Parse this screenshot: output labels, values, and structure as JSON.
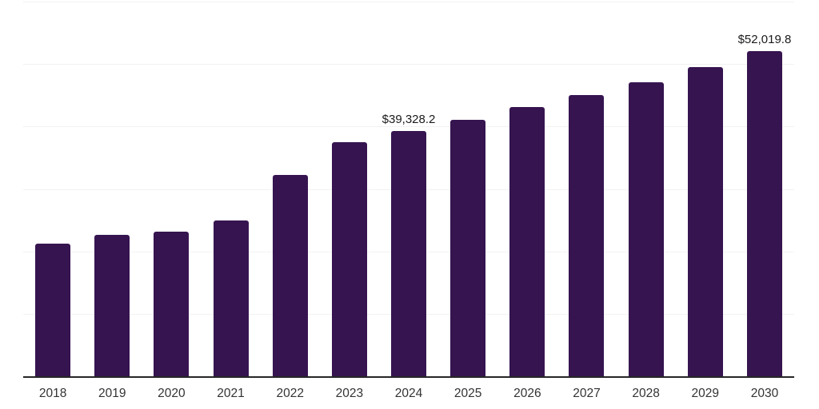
{
  "chart_data": {
    "type": "bar",
    "title": "",
    "xlabel": "",
    "ylabel": "",
    "categories": [
      "2018",
      "2019",
      "2020",
      "2021",
      "2022",
      "2023",
      "2024",
      "2025",
      "2026",
      "2027",
      "2028",
      "2029",
      "2030"
    ],
    "values": [
      21200,
      22600,
      23100,
      25000,
      32200,
      37500,
      39328.2,
      41100,
      43100,
      45000,
      47100,
      49500,
      52019.8
    ],
    "data_labels": [
      null,
      null,
      null,
      null,
      null,
      null,
      "$39,328.2",
      null,
      null,
      null,
      null,
      null,
      "$52,019.8"
    ],
    "ylim": [
      0,
      60000
    ],
    "grid_step": 10000,
    "grid": "horizontal, unlabeled y-axis",
    "legend_position": "none"
  },
  "colors": {
    "bar": "#361450",
    "gridline": "#f2f2f2",
    "axis_line": "#262626",
    "data_label": "#1a1a1a",
    "tick_label": "#333333",
    "background": "#ffffff"
  }
}
